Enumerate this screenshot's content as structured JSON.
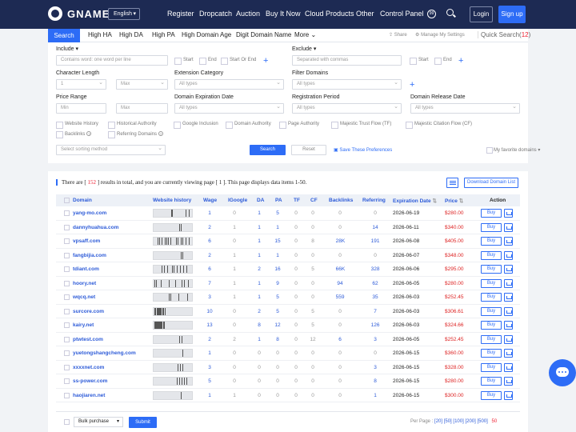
{
  "nav": {
    "brand": "GNAME",
    "language": "English",
    "links": [
      "Register",
      "Dropcatch",
      "Auction",
      "Buy It Now",
      "Cloud Products",
      "Other",
      "Control Panel"
    ],
    "login": "Login",
    "signup": "Sign up"
  },
  "tabs": {
    "active": "Search",
    "items": [
      "High HA",
      "High DA",
      "High PA",
      "High Domain Age",
      "Digit Domain Name",
      "More"
    ],
    "share": "Share",
    "settings": "Manage My Settings",
    "quick_search": "Quick Search",
    "quick_search_count": "12"
  },
  "filters": {
    "include_label": "Include",
    "include_placeholder": "Contains word: one word per line",
    "include_opts": [
      "Start",
      "End",
      "Start Or End"
    ],
    "exclude_label": "Exclude",
    "exclude_placeholder": "Separated with commas",
    "exclude_opts": [
      "Start",
      "End"
    ],
    "char_len_label": "Character Length",
    "char_len_min": "1",
    "char_len_max": "Max",
    "ext_label": "Extension Category",
    "ext_placeholder": "All types",
    "filter_domains_label": "Filter Domains",
    "filter_domains_placeholder": "All types",
    "price_label": "Price Range",
    "price_min": "Min",
    "price_max": "Max",
    "expiry_label": "Domain Expiration Date",
    "expiry_placeholder": "All types",
    "reg_period_label": "Registration Period",
    "reg_period_placeholder": "All types",
    "release_label": "Domain Release Date",
    "release_placeholder": "All types",
    "checkbox_opts": [
      "Website History",
      "Historical Authority",
      "Google Inclusion",
      "Domain Authority",
      "Page Authority",
      "Majestic Trust Flow (TF)",
      "Majestic Citation Flow (CF)",
      "Backlinks",
      "Referring Domains"
    ],
    "sort_placeholder": "Select sorting method",
    "search_btn": "Search",
    "reset_btn": "Reset",
    "save_prefs": "Save These Preferences",
    "favorite": "My favorite domains"
  },
  "results": {
    "summary_pre": "There are [",
    "total": "152",
    "summary_mid": "] results in total, and you are currently viewing page [",
    "page": "1",
    "summary_post": "]. This page displays data items 1-50.",
    "download": "Download Domain List",
    "headers": [
      "Domain",
      "Website history",
      "Wage",
      "IGoogle",
      "DA",
      "PA",
      "TF",
      "CF",
      "Backlinks",
      "Referring",
      "Expiration Date",
      "Price",
      "Action"
    ],
    "buy_label": "Buy",
    "rows": [
      {
        "domain": "yang-mo.com",
        "wage": "1",
        "ig": "0",
        "da": "1",
        "pa": "5",
        "tf": "0",
        "cf": "0",
        "bl": "0",
        "ref": "0",
        "exp": "2026-06-19",
        "price": "$280.00",
        "hist": [
          46,
          48,
          84,
          92
        ]
      },
      {
        "domain": "dannyhuahua.com",
        "wage": "2",
        "ig": "1",
        "da": "1",
        "pa": "1",
        "tf": "0",
        "cf": "0",
        "bl": "0",
        "ref": "14",
        "exp": "2026-06-11",
        "price": "$340.00",
        "hist": [
          66,
          70
        ]
      },
      {
        "domain": "vpsaff.com",
        "wage": "6",
        "ig": "0",
        "da": "1",
        "pa": "15",
        "tf": "0",
        "cf": "8",
        "bl": "28K",
        "ref": "191",
        "exp": "2026-06-08",
        "price": "$405.00",
        "hist": [
          10,
          14,
          20,
          30,
          34,
          38,
          44,
          58,
          62,
          70,
          76,
          84,
          92
        ]
      },
      {
        "domain": "fangbijia.com",
        "wage": "2",
        "ig": "1",
        "da": "1",
        "pa": "1",
        "tf": "0",
        "cf": "0",
        "bl": "0",
        "ref": "0",
        "exp": "2026-06-07",
        "price": "$348.00",
        "hist": [
          70,
          74
        ]
      },
      {
        "domain": "tdiant.com",
        "wage": "6",
        "ig": "1",
        "da": "2",
        "pa": "16",
        "tf": "0",
        "cf": "5",
        "bl": "66K",
        "ref": "328",
        "exp": "2026-06-06",
        "price": "$295.00",
        "hist": [
          20,
          28,
          36,
          48,
          52,
          60,
          68,
          78,
          86
        ]
      },
      {
        "domain": "hoory.net",
        "wage": "7",
        "ig": "1",
        "da": "1",
        "pa": "9",
        "tf": "0",
        "cf": "0",
        "bl": "94",
        "ref": "62",
        "exp": "2026-06-05",
        "price": "$280.00",
        "hist": [
          2,
          6,
          18,
          40,
          56,
          72,
          80,
          90
        ]
      },
      {
        "domain": "wqcq.net",
        "wage": "3",
        "ig": "1",
        "da": "1",
        "pa": "5",
        "tf": "0",
        "cf": "0",
        "bl": "559",
        "ref": "35",
        "exp": "2026-06-03",
        "price": "$252.45",
        "hist": [
          40,
          44,
          64,
          88
        ]
      },
      {
        "domain": "surcore.com",
        "wage": "10",
        "ig": "0",
        "da": "2",
        "pa": "5",
        "tf": "0",
        "cf": "5",
        "bl": "0",
        "ref": "7",
        "exp": "2026-06-03",
        "price": "$306.61",
        "hist": [
          2,
          4,
          8,
          10,
          12,
          14,
          16,
          18,
          22,
          24,
          26,
          30
        ]
      },
      {
        "domain": "kairy.net",
        "wage": "13",
        "ig": "0",
        "da": "8",
        "pa": "12",
        "tf": "0",
        "cf": "5",
        "bl": "0",
        "ref": "126",
        "exp": "2026-06-03",
        "price": "$324.66",
        "hist": [
          2,
          4,
          6,
          8,
          10,
          12,
          14,
          16,
          18,
          20,
          24,
          28
        ]
      },
      {
        "domain": "ptwtest.com",
        "wage": "2",
        "ig": "2",
        "da": "1",
        "pa": "8",
        "tf": "0",
        "cf": "12",
        "bl": "6",
        "ref": "3",
        "exp": "2026-06-05",
        "price": "$252.45",
        "hist": [
          66,
          72
        ]
      },
      {
        "domain": "yuetongshangcheng.com",
        "wage": "1",
        "ig": "0",
        "da": "0",
        "pa": "0",
        "tf": "0",
        "cf": "0",
        "bl": "0",
        "ref": "0",
        "exp": "2026-06-15",
        "price": "$360.00",
        "hist": [
          74
        ]
      },
      {
        "domain": "xxxxnet.com",
        "wage": "3",
        "ig": "0",
        "da": "0",
        "pa": "0",
        "tf": "0",
        "cf": "0",
        "bl": "0",
        "ref": "3",
        "exp": "2026-06-15",
        "price": "$328.00",
        "hist": [
          62,
          68,
          76
        ]
      },
      {
        "domain": "ss-power.com",
        "wage": "5",
        "ig": "0",
        "da": "0",
        "pa": "0",
        "tf": "0",
        "cf": "0",
        "bl": "0",
        "ref": "8",
        "exp": "2026-06-15",
        "price": "$280.00",
        "hist": [
          60,
          66,
          72,
          80,
          86
        ]
      },
      {
        "domain": "haojiaren.net",
        "wage": "1",
        "ig": "1",
        "da": "0",
        "pa": "0",
        "tf": "0",
        "cf": "0",
        "bl": "0",
        "ref": "1",
        "exp": "2026-06-15",
        "price": "$300.00",
        "hist": [
          70
        ]
      }
    ],
    "bulk_label": "Bulk purchase",
    "submit": "Submit",
    "per_page_label": "Per Page :",
    "per_page_opts": [
      "[20]",
      "[50]",
      "[100]",
      "[200]",
      "[500]"
    ],
    "per_page_current": "50"
  }
}
